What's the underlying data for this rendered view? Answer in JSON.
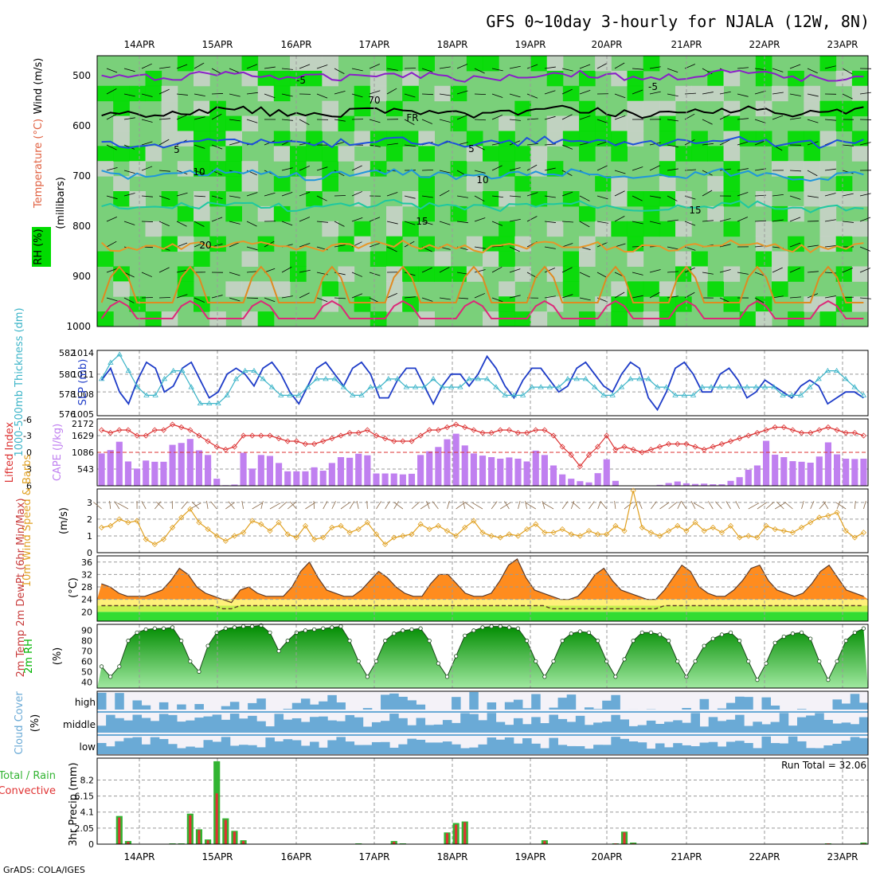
{
  "header": {
    "title": "GFS 0~10day 3-hourly for NJALA (12W, 8N)"
  },
  "footer": {
    "credit": "GrADS: COLA/IGES"
  },
  "colors": {
    "rh_green": "#00dc00",
    "rh_mid": "#7ad07a",
    "rh_grey": "#c8d2c8",
    "slp": "#1e3cc8",
    "thickness": "#3cb4c8",
    "lifted": "#dc3232",
    "cape": "#c080f0",
    "wind10": "#e0a020",
    "temp_fill": "#ff8c1e",
    "rh2m": "#00b400",
    "cloud": "#6aaad6",
    "rain": "#32b432",
    "conv": "#e03232"
  },
  "chart_data": [
    {
      "type": "heatmap",
      "panel": "upper-air",
      "x_labels": [
        "14APR",
        "15APR",
        "16APR",
        "17APR",
        "18APR",
        "19APR",
        "20APR",
        "21APR",
        "22APR",
        "23APR"
      ],
      "y_ticks": [
        500,
        600,
        700,
        800,
        900,
        1000
      ],
      "ylim": [
        460,
        1000
      ],
      "ylabel": "(millibars)",
      "vertical_labels": [
        "Wind (m/s)",
        "Temperature (°C)",
        "RH (%)"
      ],
      "contour_labels": [
        "-5",
        "FR",
        "5",
        "10",
        "15",
        "-5",
        "5",
        "10",
        "15",
        "20",
        "70"
      ],
      "isotherms": [
        {
          "name": "-5",
          "level": 500,
          "color": "#8a1ec8"
        },
        {
          "name": "FR",
          "level": 572,
          "color": "#000000"
        },
        {
          "name": "5",
          "level": 632,
          "color": "#1e50dc"
        },
        {
          "name": "10",
          "level": 697,
          "color": "#1e96dc"
        },
        {
          "name": "15",
          "level": 760,
          "color": "#1ec8a0"
        },
        {
          "name": "20",
          "level": 840,
          "color": "#e69628"
        }
      ]
    },
    {
      "type": "line",
      "panel": "pressure",
      "series": [
        {
          "name": "SLP (mb)",
          "values": [
            1010,
            1012,
            1008,
            1006,
            1010,
            1013,
            1012,
            1008,
            1009,
            1012,
            1013,
            1010,
            1007,
            1008,
            1011,
            1012,
            1011,
            1009,
            1012,
            1013,
            1011,
            1008,
            1006,
            1009,
            1012,
            1013,
            1011,
            1009,
            1012,
            1013,
            1011,
            1007,
            1007,
            1010,
            1012,
            1012,
            1009,
            1006,
            1009,
            1011,
            1011,
            1009,
            1011,
            1014,
            1012,
            1009,
            1007,
            1010,
            1012,
            1012,
            1010,
            1008,
            1009,
            1012,
            1013,
            1011,
            1009,
            1008,
            1011,
            1013,
            1012,
            1007,
            1005,
            1008,
            1012,
            1013,
            1011,
            1008,
            1008,
            1011,
            1012,
            1010,
            1007,
            1008,
            1010,
            1009,
            1008,
            1007,
            1009,
            1010,
            1009,
            1006,
            1007,
            1008,
            1008,
            1007
          ]
        },
        {
          "name": "1000-500mb Thickness (dm)",
          "values": [
            580,
            582,
            583,
            581,
            579,
            578,
            578,
            580,
            581,
            581,
            579,
            577,
            577,
            577,
            578,
            580,
            581,
            581,
            580,
            579,
            578,
            578,
            578,
            579,
            580,
            580,
            580,
            579,
            578,
            578,
            579,
            579,
            580,
            580,
            579,
            579,
            579,
            580,
            579,
            579,
            579,
            580,
            580,
            580,
            579,
            578,
            578,
            578,
            579,
            579,
            579,
            579,
            580,
            580,
            580,
            579,
            578,
            578,
            579,
            580,
            580,
            580,
            579,
            579,
            578,
            578,
            578,
            579,
            579,
            579,
            579,
            579,
            579,
            579,
            579,
            579,
            578,
            578,
            578,
            579,
            580,
            581,
            581,
            580,
            579,
            578
          ]
        }
      ],
      "left_ticks": [
        "582",
        "580",
        "578",
        "576"
      ],
      "right_ticks": [
        "1014",
        "1011",
        "1008",
        "1005"
      ],
      "left_label": "1000-500mb Thickness (dm)",
      "right_label": "SLP (mb)"
    },
    {
      "type": "bar",
      "panel": "instability",
      "series": [
        {
          "name": "CAPE (J/kg)",
          "values": [
            1050,
            1160,
            1430,
            790,
            560,
            820,
            780,
            780,
            1330,
            1390,
            1520,
            1150,
            1000,
            230,
            20,
            40,
            1070,
            560,
            1000,
            970,
            740,
            470,
            470,
            470,
            600,
            490,
            740,
            930,
            910,
            1040,
            990,
            400,
            400,
            400,
            370,
            390,
            1000,
            1120,
            1260,
            1510,
            1690,
            1310,
            1050,
            980,
            930,
            880,
            920,
            880,
            790,
            1140,
            1000,
            660,
            370,
            230,
            150,
            110,
            410,
            860,
            160,
            0,
            0,
            0,
            0,
            30,
            90,
            140,
            80,
            60,
            70,
            50,
            50,
            160,
            280,
            520,
            660,
            1460,
            1010,
            930,
            800,
            780,
            750,
            950,
            1410,
            1020,
            880,
            870,
            880
          ]
        },
        {
          "name": "Lifted Index",
          "values": [
            -4,
            -3.5,
            -4,
            -4,
            -3,
            -3,
            -4,
            -4,
            -5,
            -4.5,
            -4,
            -3,
            -2,
            -1,
            -0.5,
            -1,
            -3,
            -3,
            -3,
            -3,
            -2.5,
            -2,
            -2,
            -1.5,
            -1.5,
            -2,
            -2.5,
            -3,
            -3.5,
            -3.5,
            -4,
            -3,
            -2.5,
            -2,
            -2,
            -2,
            -3,
            -4,
            -4,
            -4.5,
            -5,
            -4.5,
            -4,
            -3.5,
            -3.5,
            -4,
            -4,
            -3.5,
            -3.5,
            -4,
            -4,
            -3,
            -1,
            0.5,
            2.5,
            0.5,
            -1,
            -3,
            -0.5,
            -1,
            -0.5,
            0,
            -0.5,
            -1,
            -1.5,
            -1.5,
            -1.5,
            -1,
            -0.5,
            -1,
            -1.5,
            -2,
            -2.5,
            -3,
            -3.5,
            -4,
            -4.5,
            -4.5,
            -4,
            -3.5,
            -3.5,
            -4,
            -4.5,
            -4,
            -3.5,
            -3.5,
            -3
          ]
        }
      ],
      "left_ticks": [
        "-6",
        "-3",
        "0",
        "3",
        "6"
      ],
      "right_ticks": [
        "2172",
        "1629",
        "1086",
        "543"
      ],
      "left_label": "Lifted Index",
      "right_label": "CAPE (J/kg)"
    },
    {
      "type": "line",
      "panel": "wind10m",
      "series": [
        {
          "name": "10m Wind Speed",
          "values": [
            1.5,
            1.6,
            2.0,
            1.8,
            1.9,
            0.8,
            0.5,
            0.8,
            1.5,
            2.1,
            2.6,
            1.8,
            1.4,
            1.0,
            0.7,
            1.0,
            1.2,
            1.9,
            1.7,
            1.3,
            1.8,
            1.1,
            0.9,
            1.6,
            0.8,
            0.9,
            1.5,
            1.6,
            1.2,
            1.4,
            1.8,
            1.1,
            0.5,
            0.9,
            1.0,
            1.1,
            1.7,
            1.4,
            1.6,
            1.3,
            1.0,
            1.5,
            1.9,
            1.2,
            1.0,
            0.9,
            1.1,
            1.0,
            1.4,
            1.7,
            1.2,
            1.2,
            1.4,
            1.1,
            1.0,
            1.3,
            1.1,
            1.1,
            1.6,
            1.3,
            3.7,
            1.5,
            1.2,
            1.0,
            1.3,
            1.6,
            1.3,
            1.8,
            1.3,
            1.5,
            1.2,
            1.6,
            0.9,
            1.0,
            0.9,
            1.6,
            1.4,
            1.3,
            1.2,
            1.5,
            1.8,
            2.1,
            2.2,
            2.4,
            1.3,
            0.9,
            1.2
          ]
        }
      ],
      "left_ticks": [
        "3",
        "2",
        "1",
        "0"
      ],
      "left_label": "10m Wind Speed & Barbs",
      "ylabel": "(m/s)"
    },
    {
      "type": "area",
      "panel": "temperature",
      "series": [
        {
          "name": "2m Temp",
          "values": [
            29,
            28,
            26,
            25,
            25,
            25,
            26,
            27,
            30,
            34,
            32,
            28,
            26,
            25,
            24,
            23,
            27,
            28,
            26,
            25,
            25,
            25,
            28,
            33,
            36,
            31,
            27,
            26,
            25,
            25,
            27,
            30,
            33,
            31,
            28,
            26,
            25,
            25,
            29,
            32,
            32,
            29,
            26,
            25,
            25,
            26,
            30,
            35,
            37,
            31,
            27,
            26,
            25,
            24,
            24,
            25,
            28,
            32,
            34,
            30,
            27,
            26,
            25,
            24,
            24,
            27,
            31,
            35,
            33,
            28,
            26,
            25,
            25,
            27,
            30,
            34,
            35,
            30,
            27,
            26,
            25,
            26,
            29,
            33,
            35,
            31,
            27,
            26,
            25
          ]
        },
        {
          "name": "2m DewPt",
          "values": [
            22,
            22,
            22,
            22,
            22,
            22,
            22,
            22,
            22,
            22,
            22,
            22,
            22,
            22,
            21,
            21,
            22,
            22,
            22,
            22,
            22,
            22,
            22,
            22,
            22,
            22,
            22,
            22,
            22,
            22,
            22,
            22,
            22,
            22,
            22,
            22,
            22,
            22,
            22,
            22,
            22,
            22,
            22,
            22,
            22,
            22,
            22,
            22,
            22,
            22,
            22,
            22,
            21,
            21,
            21,
            21,
            21,
            21,
            21,
            21,
            21,
            21,
            21,
            21,
            21,
            22,
            22,
            22,
            22,
            22,
            22,
            22,
            22,
            22,
            22,
            22,
            22,
            22,
            22,
            22,
            22,
            22,
            22,
            22,
            22,
            22,
            22,
            22,
            22
          ]
        }
      ],
      "left_ticks": [
        "36",
        "32",
        "28",
        "24",
        "20"
      ],
      "left_label": "2m Temp 2m DewPt (6hr Min/Max)",
      "ylabel": "(°C)"
    },
    {
      "type": "area",
      "panel": "rh2m",
      "series": [
        {
          "name": "2m RH",
          "values": [
            55,
            45,
            55,
            80,
            88,
            91,
            92,
            92,
            93,
            80,
            60,
            50,
            75,
            88,
            92,
            93,
            94,
            94,
            95,
            88,
            70,
            80,
            88,
            90,
            91,
            92,
            93,
            94,
            80,
            60,
            45,
            60,
            80,
            87,
            90,
            91,
            92,
            80,
            58,
            45,
            65,
            85,
            90,
            93,
            94,
            94,
            93,
            92,
            80,
            60,
            45,
            60,
            80,
            87,
            89,
            88,
            80,
            60,
            45,
            62,
            80,
            88,
            88,
            86,
            80,
            60,
            45,
            60,
            75,
            82,
            86,
            88,
            80,
            60,
            42,
            58,
            78,
            84,
            87,
            88,
            82,
            60,
            42,
            60,
            80,
            88,
            92
          ]
        }
      ],
      "left_ticks": [
        "90",
        "80",
        "70",
        "60",
        "50",
        "40"
      ],
      "left_label": "2m RH",
      "ylabel": "(%)"
    },
    {
      "type": "heatmap",
      "panel": "clouds",
      "rows": [
        "high",
        "middle",
        "low"
      ],
      "left_label": "Cloud Cover",
      "ylabel": "(%)"
    },
    {
      "type": "bar",
      "panel": "precip",
      "series": [
        {
          "name": "Total / Rain",
          "values": [
            0,
            0,
            3.6,
            0.4,
            0,
            0,
            0,
            0,
            0.1,
            0.1,
            3.9,
            1.9,
            0.6,
            10.6,
            3.3,
            1.7,
            0.5,
            0,
            0,
            0,
            0,
            0,
            0,
            0,
            0,
            0,
            0,
            0,
            0,
            0.1,
            0,
            0,
            0,
            0.4,
            0.1,
            0,
            0,
            0,
            0,
            1.5,
            2.7,
            2.9,
            0,
            0,
            0,
            0,
            0,
            0,
            0,
            0,
            0.5,
            0,
            0,
            0,
            0,
            0,
            0,
            0,
            0.1,
            1.6,
            0.2,
            0,
            0,
            0,
            0,
            0,
            0,
            0,
            0,
            0,
            0,
            0,
            0,
            0,
            0,
            0,
            0,
            0,
            0,
            0,
            0,
            0,
            0.1,
            0,
            0,
            0,
            0.2
          ]
        },
        {
          "name": "Convective",
          "values": [
            0,
            0,
            3.4,
            0.3,
            0,
            0,
            0,
            0,
            0,
            0,
            3.7,
            1.8,
            0.5,
            6.5,
            3.1,
            1.6,
            0.4,
            0,
            0,
            0,
            0,
            0,
            0,
            0,
            0,
            0,
            0,
            0,
            0,
            0,
            0,
            0,
            0,
            0.3,
            0,
            0,
            0,
            0,
            0,
            1.4,
            2.5,
            2.8,
            0,
            0,
            0,
            0,
            0,
            0,
            0,
            0,
            0.4,
            0,
            0,
            0,
            0,
            0,
            0,
            0,
            0.1,
            1.5,
            0.1,
            0,
            0,
            0,
            0,
            0,
            0,
            0,
            0,
            0,
            0,
            0,
            0,
            0,
            0,
            0,
            0,
            0,
            0,
            0,
            0,
            0,
            0.1,
            0,
            0,
            0,
            0.1
          ]
        }
      ],
      "left_ticks": [
        "8.2",
        "6.15",
        "4.1",
        "2.05",
        "0"
      ],
      "left_label": "Total / Rain Convective",
      "ylabel": "3hr Precip (mm)",
      "run_total_label": "Run Total = 32.06"
    }
  ]
}
